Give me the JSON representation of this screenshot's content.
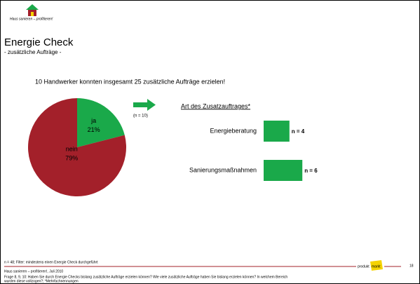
{
  "logo": "Haus sanieren – profitieren!",
  "title": "Energie Check",
  "subtitle": "- zusätzliche Aufträge -",
  "headline": "10 Handwerker konnten insgesamt 25 zusätzliche Aufträge erzielen!",
  "arrow_note": "(n = 10)",
  "chart_data": [
    {
      "type": "pie",
      "categories": [
        "ja",
        "nein"
      ],
      "values": [
        21,
        79
      ],
      "value_labels": [
        "21%",
        "79%"
      ],
      "colors": [
        "#1aa94a",
        "#a3202a"
      ]
    },
    {
      "type": "bar",
      "title": "Art des Zusatzauftrages*",
      "categories": [
        "Energieberatung",
        "Sanierungsmaßnahmen"
      ],
      "values": [
        4,
        6
      ],
      "value_labels": [
        "n = 4",
        "n = 6"
      ],
      "color": "#1aa94a"
    }
  ],
  "footer": {
    "filter": "n = 48; Filter: mindestens einen Energie Check durchgeführt",
    "source": "Haus sanieren – profitieren!, Juli 2010",
    "question_1": "Frage 8, 9, 10: Haben Sie durch Energie Checks bislang zusätzliche Aufträge erzielen können? Wie viele zusätzliche Aufträge haben Sie bislang erzielen können? In welchem Bereich",
    "question_2": "wurden diese vollzogen?; *Mehrfachnennungen",
    "brand_1": "produkt",
    "brand_2": "markt",
    "page": "18"
  }
}
